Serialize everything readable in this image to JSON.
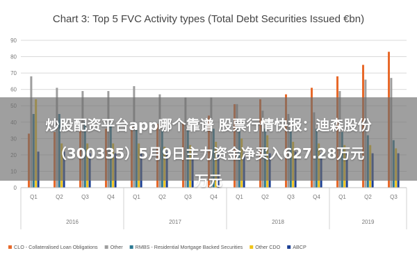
{
  "overlay": {
    "line1": "炒股配资平台app哪个靠谱 股票行情快报：迪森股份",
    "line2": "（300335）5月9日主力资金净买入627.28万元",
    "line3": "万元"
  },
  "chart_data": {
    "type": "bar",
    "title": "Chart 3: Top 5 FVC Activity types (Total Debt Securities Issued €bn)",
    "xlabel": "",
    "ylabel": "",
    "ylim": [
      0,
      90
    ],
    "yticks": [
      0,
      10,
      20,
      30,
      40,
      50,
      60,
      70,
      80,
      90
    ],
    "grid": true,
    "legend_position": "bottom",
    "categories": [
      "Q1",
      "Q2",
      "Q3",
      "Q4",
      "Q1",
      "Q2",
      "Q3",
      "Q4",
      "Q1",
      "Q2",
      "Q3",
      "Q4",
      "Q1",
      "Q2",
      "Q3"
    ],
    "year_groups": [
      {
        "label": "2016",
        "start": 0,
        "count": 4
      },
      {
        "label": "2017",
        "start": 4,
        "count": 4
      },
      {
        "label": "2018",
        "start": 8,
        "count": 4
      },
      {
        "label": "2019",
        "start": 12,
        "count": 3
      }
    ],
    "series": [
      {
        "name": "CLO - Collateralised Loan Obligations",
        "color": "#e8692a",
        "values": [
          33,
          34,
          35,
          36,
          38,
          39,
          40,
          44,
          51,
          54,
          57,
          61,
          68,
          75,
          83
        ]
      },
      {
        "name": "Other",
        "color": "#9e9e9e",
        "values": [
          68,
          61,
          59,
          59,
          62,
          57,
          55,
          55,
          51,
          47,
          45,
          46,
          59,
          66,
          67
        ]
      },
      {
        "name": "RMBS - Residential Mortgage Backed Securities",
        "color": "#2d7a93",
        "values": [
          45,
          45,
          40,
          39,
          36,
          35,
          35,
          36,
          36,
          36,
          36,
          36,
          34,
          32,
          29
        ]
      },
      {
        "name": "Other CDO",
        "color": "#f0c419",
        "values": [
          54,
          27,
          27,
          27,
          27,
          25,
          26,
          28,
          30,
          32,
          28,
          27,
          26,
          26,
          24
        ]
      },
      {
        "name": "ABCP",
        "color": "#1c3f94",
        "values": [
          22,
          22,
          21,
          21,
          22,
          22,
          22,
          21,
          21,
          21,
          22,
          21,
          21,
          21,
          21
        ]
      }
    ]
  }
}
